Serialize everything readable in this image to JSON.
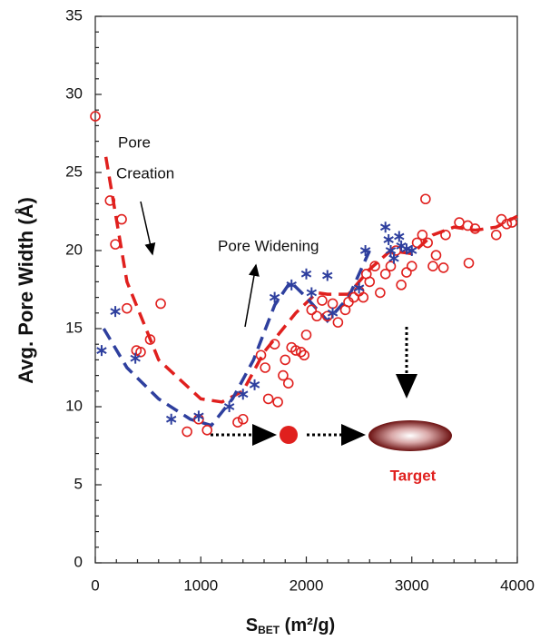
{
  "chart_data": {
    "type": "scatter",
    "y_label": "Avg. Pore Width (Å)",
    "x_label": {
      "main": "S",
      "sub": "BET",
      "rest": " (m²/g)"
    },
    "annotations": {
      "pore_creation": [
        "Pore",
        "Creation"
      ],
      "pore_widening": "Pore Widening",
      "target": "Target"
    },
    "xlim": [
      0,
      4000
    ],
    "xticks": [
      0,
      1000,
      2000,
      3000,
      4000
    ],
    "ylim": [
      0,
      35
    ],
    "yticks": [
      0,
      5,
      10,
      15,
      20,
      25,
      30,
      35
    ],
    "series": [
      {
        "color": "#e0201e",
        "marker": "circle",
        "x": [
          0,
          140,
          190,
          250,
          300,
          390,
          430,
          520,
          620,
          870,
          980,
          1060,
          1350,
          1400,
          1570,
          1610,
          1640,
          1700,
          1730,
          1780,
          1800,
          1830,
          1860,
          1900,
          1950,
          1980,
          2000,
          2050,
          2100,
          2150,
          2200,
          2250,
          2300,
          2370,
          2400,
          2450,
          2500,
          2540,
          2570,
          2600,
          2650,
          2700,
          2750,
          2800,
          2850,
          2900,
          2950,
          3000,
          3050,
          3100,
          3130,
          3150,
          3200,
          3230,
          3300,
          3320,
          3450,
          3530,
          3540,
          3600,
          3800,
          3850,
          3900,
          3950
        ],
        "values": [
          28.6,
          23.2,
          20.4,
          22.0,
          16.3,
          13.6,
          13.5,
          14.3,
          16.6,
          8.4,
          9.2,
          8.5,
          9.0,
          9.2,
          13.3,
          12.5,
          10.5,
          14.0,
          10.3,
          12.0,
          13.0,
          11.5,
          13.8,
          13.6,
          13.5,
          13.3,
          14.6,
          16.2,
          15.8,
          16.8,
          15.8,
          16.6,
          15.4,
          16.2,
          16.7,
          17.0,
          17.4,
          17.0,
          18.5,
          18.0,
          19.0,
          17.3,
          18.5,
          19.0,
          20.0,
          17.8,
          18.6,
          19.0,
          20.5,
          21.0,
          23.3,
          20.5,
          19.0,
          19.7,
          18.9,
          21.0,
          21.8,
          21.6,
          19.2,
          21.4,
          21.0,
          22.0,
          21.7,
          21.8
        ]
      },
      {
        "color": "#2e3f9e",
        "marker": "asterisk",
        "x": [
          60,
          190,
          380,
          720,
          980,
          1270,
          1400,
          1510,
          1700,
          1860,
          2000,
          2050,
          2200,
          2250,
          2500,
          2560,
          2750,
          2780,
          2800,
          2830,
          2880,
          2900,
          2950,
          3000
        ],
        "values": [
          13.6,
          16.1,
          13.1,
          9.2,
          9.4,
          10.0,
          10.8,
          11.4,
          17.0,
          17.8,
          18.5,
          17.3,
          18.4,
          16.0,
          17.6,
          20.0,
          21.5,
          20.7,
          20.0,
          19.5,
          20.9,
          20.3,
          20.1,
          20.0
        ]
      }
    ],
    "trend_lines": [
      {
        "color": "#e0201e",
        "x": [
          100,
          300,
          600,
          1000,
          1200,
          1400,
          1600,
          1900,
          2100,
          2200,
          2400,
          2600,
          2800,
          3000,
          3200,
          3400,
          3600,
          3800,
          4000
        ],
        "values": [
          26,
          18,
          13,
          10.5,
          10.3,
          11,
          13.5,
          16,
          17.3,
          17.2,
          17.2,
          18.8,
          20.0,
          19.8,
          21,
          21.5,
          21.3,
          21.5,
          22.2
        ]
      },
      {
        "color": "#2e3f9e",
        "x": [
          80,
          300,
          600,
          900,
          1100,
          1300,
          1500,
          1700,
          1850,
          2000,
          2200,
          2400,
          2600
        ],
        "values": [
          15,
          12.5,
          10.5,
          9.2,
          8.8,
          10.5,
          13,
          16.5,
          18,
          17,
          15.5,
          17,
          20
        ]
      }
    ]
  }
}
